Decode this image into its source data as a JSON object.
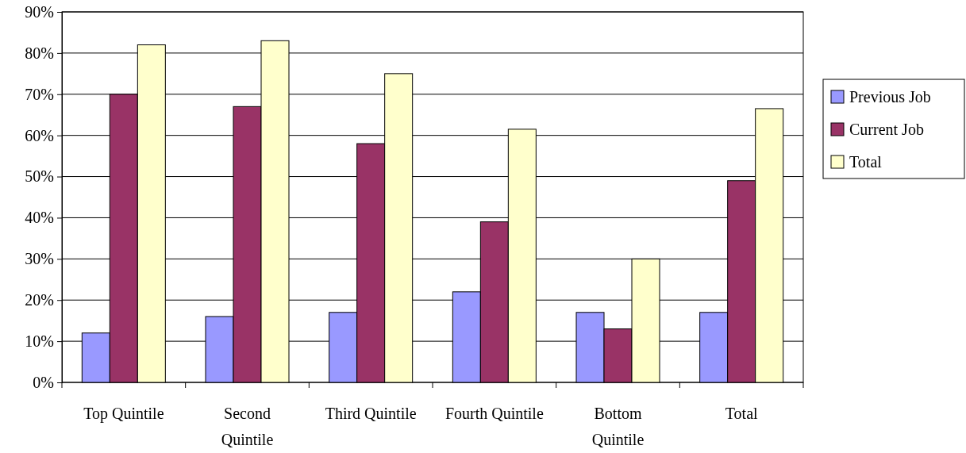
{
  "chart_data": {
    "type": "bar",
    "categories": [
      "Top Quintile",
      "Second Quintile",
      "Third Quintile",
      "Fourth Quintile",
      "Bottom Quintile",
      "Total"
    ],
    "series": [
      {
        "name": "Previous Job",
        "color": "#9999ff",
        "values": [
          12,
          16,
          17,
          22,
          17,
          17
        ]
      },
      {
        "name": "Current Job",
        "color": "#993366",
        "values": [
          70,
          67,
          58,
          39,
          13,
          49
        ]
      },
      {
        "name": "Total",
        "color": "#ffffcc",
        "values": [
          82,
          83,
          75,
          61.5,
          30,
          66.5
        ]
      }
    ],
    "ylim": [
      0,
      90
    ],
    "yticks": [
      {
        "value": 0,
        "label": "0%"
      },
      {
        "value": 10,
        "label": "10%"
      },
      {
        "value": 20,
        "label": "20%"
      },
      {
        "value": 30,
        "label": "30%"
      },
      {
        "value": 40,
        "label": "40%"
      },
      {
        "value": 50,
        "label": "50%"
      },
      {
        "value": 60,
        "label": "60%"
      },
      {
        "value": 70,
        "label": "70%"
      },
      {
        "value": 80,
        "label": "80%"
      },
      {
        "value": 90,
        "label": "90%"
      }
    ],
    "grid": "y",
    "legend": "right"
  }
}
